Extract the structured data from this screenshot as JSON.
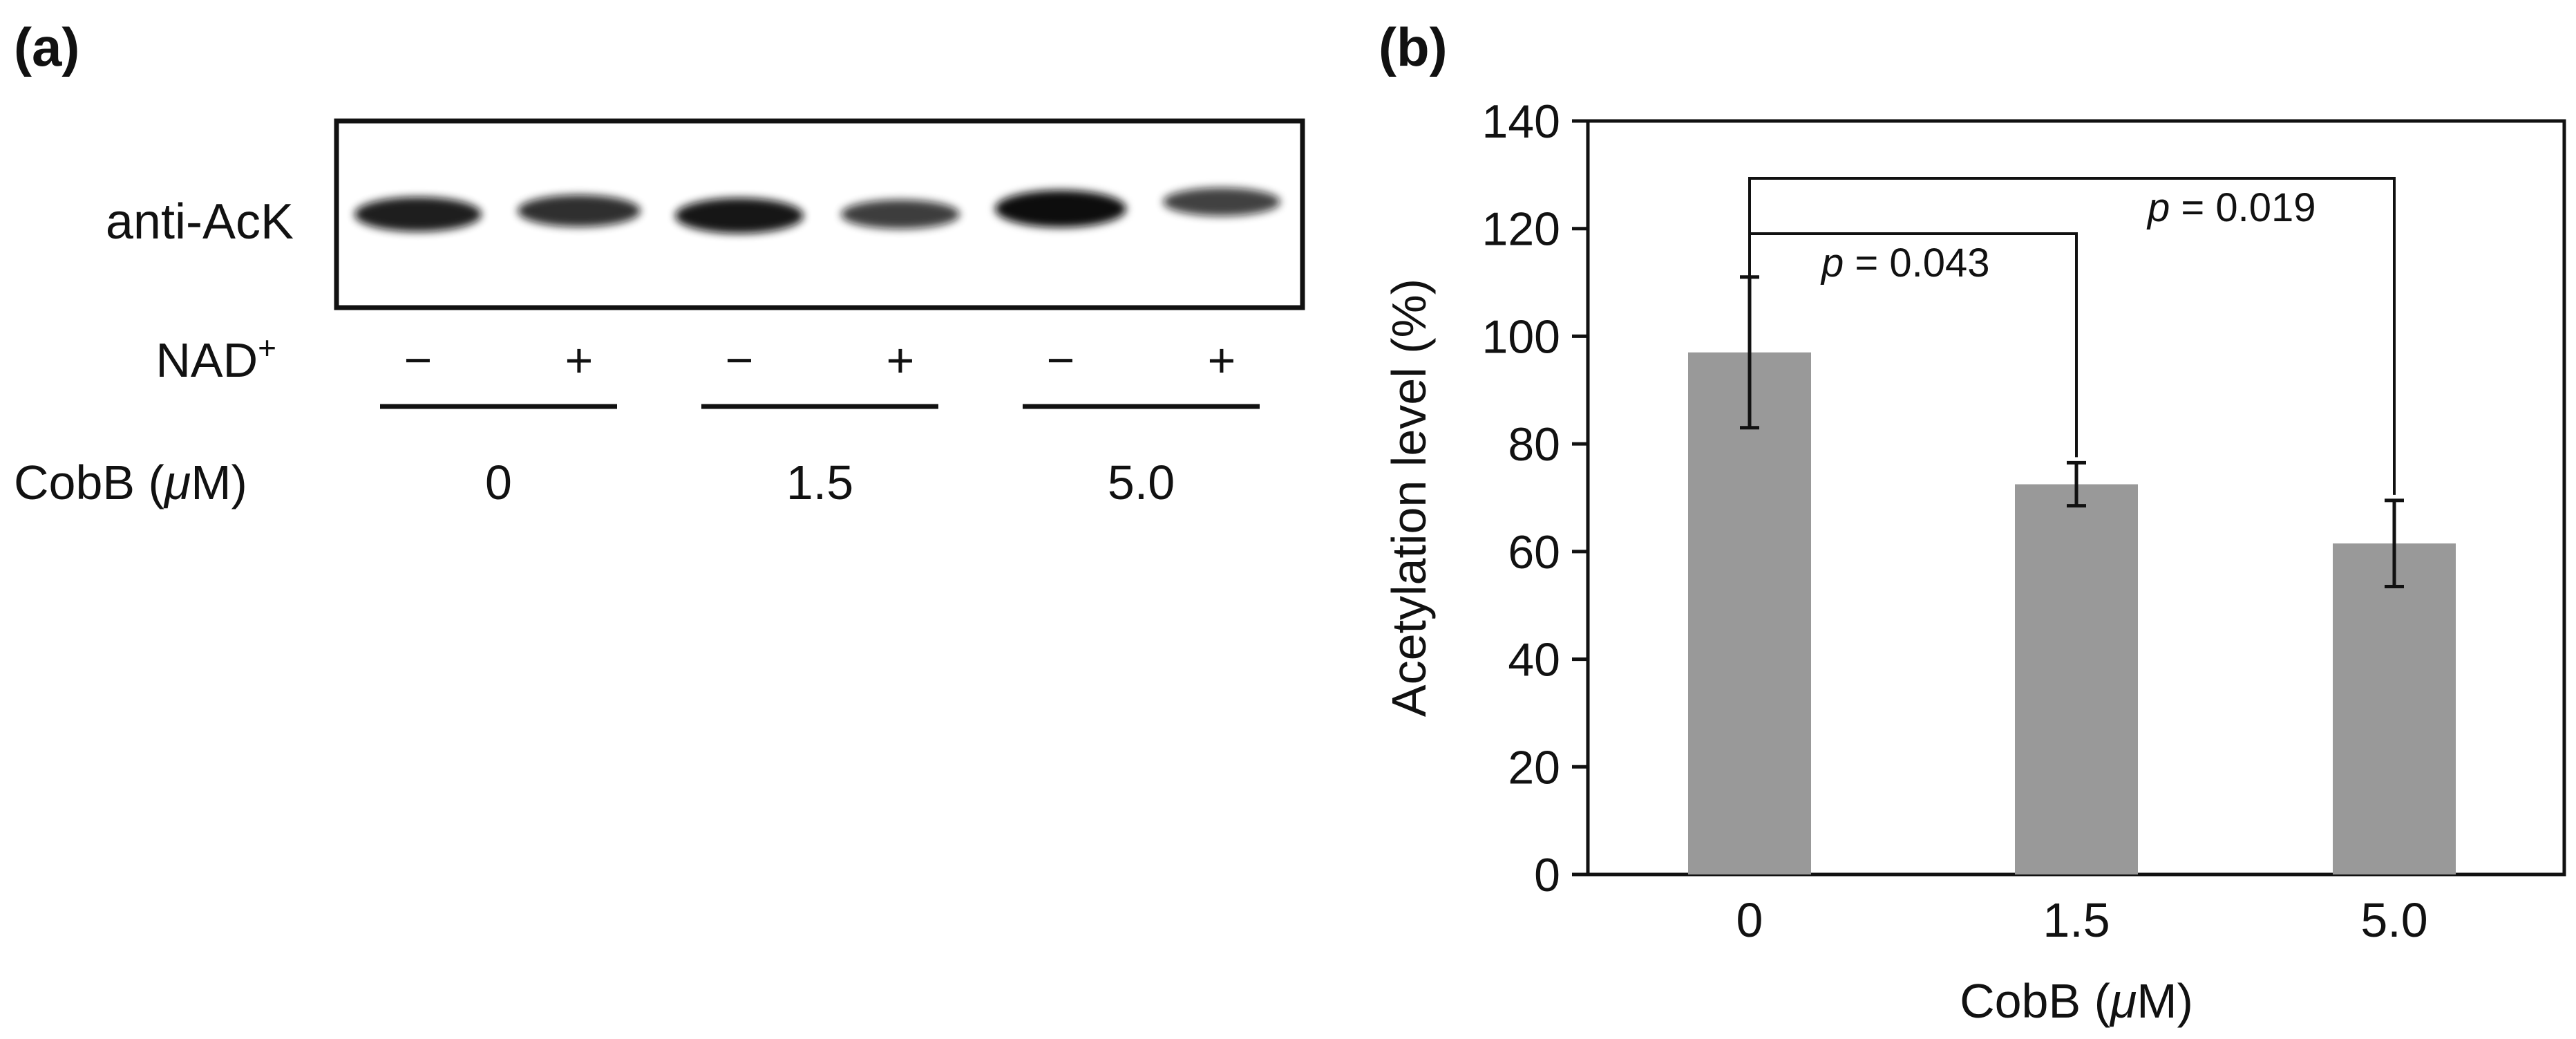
{
  "panel_a": {
    "label": "(a)",
    "blot_label": "anti-AcK",
    "nad_label": "NAD",
    "nad_superscript": "+",
    "nad_signs": [
      "−",
      "+",
      "−",
      "+",
      "−",
      "+"
    ],
    "cobb_label": "CobB (",
    "cobb_unit_mu": "μ",
    "cobb_unit_rest": "M)",
    "concentrations": [
      "0",
      "1.5",
      "5.0"
    ],
    "band_intensities": [
      0.85,
      0.7,
      0.9,
      0.55,
      1.0,
      0.5
    ]
  },
  "panel_b": {
    "label": "(b)",
    "pvalues": [
      {
        "p": "p",
        "eq": " = 0.043",
        "from": 0,
        "to": 1
      },
      {
        "p": "p",
        "eq": " = 0.019",
        "from": 0,
        "to": 2
      }
    ]
  },
  "colors": {
    "bar": "#999999",
    "ink": "#111111",
    "band": "#0d0d0d"
  },
  "chart_data": {
    "type": "bar",
    "categories": [
      "0",
      "1.5",
      "5.0"
    ],
    "values": [
      97,
      72.5,
      61.5
    ],
    "errors": [
      14,
      4,
      8
    ],
    "xlabel_prefix": "CobB (",
    "xlabel_mu": "μ",
    "xlabel_suffix": "M)",
    "ylabel": "Acetylation level (%)",
    "ylim": [
      0,
      140
    ],
    "yticks": [
      0,
      20,
      40,
      60,
      80,
      100,
      120,
      140
    ],
    "ytick_labels": [
      "0",
      "20",
      "40",
      "60",
      "80",
      "100",
      "120",
      "140"
    ],
    "grid": false
  }
}
